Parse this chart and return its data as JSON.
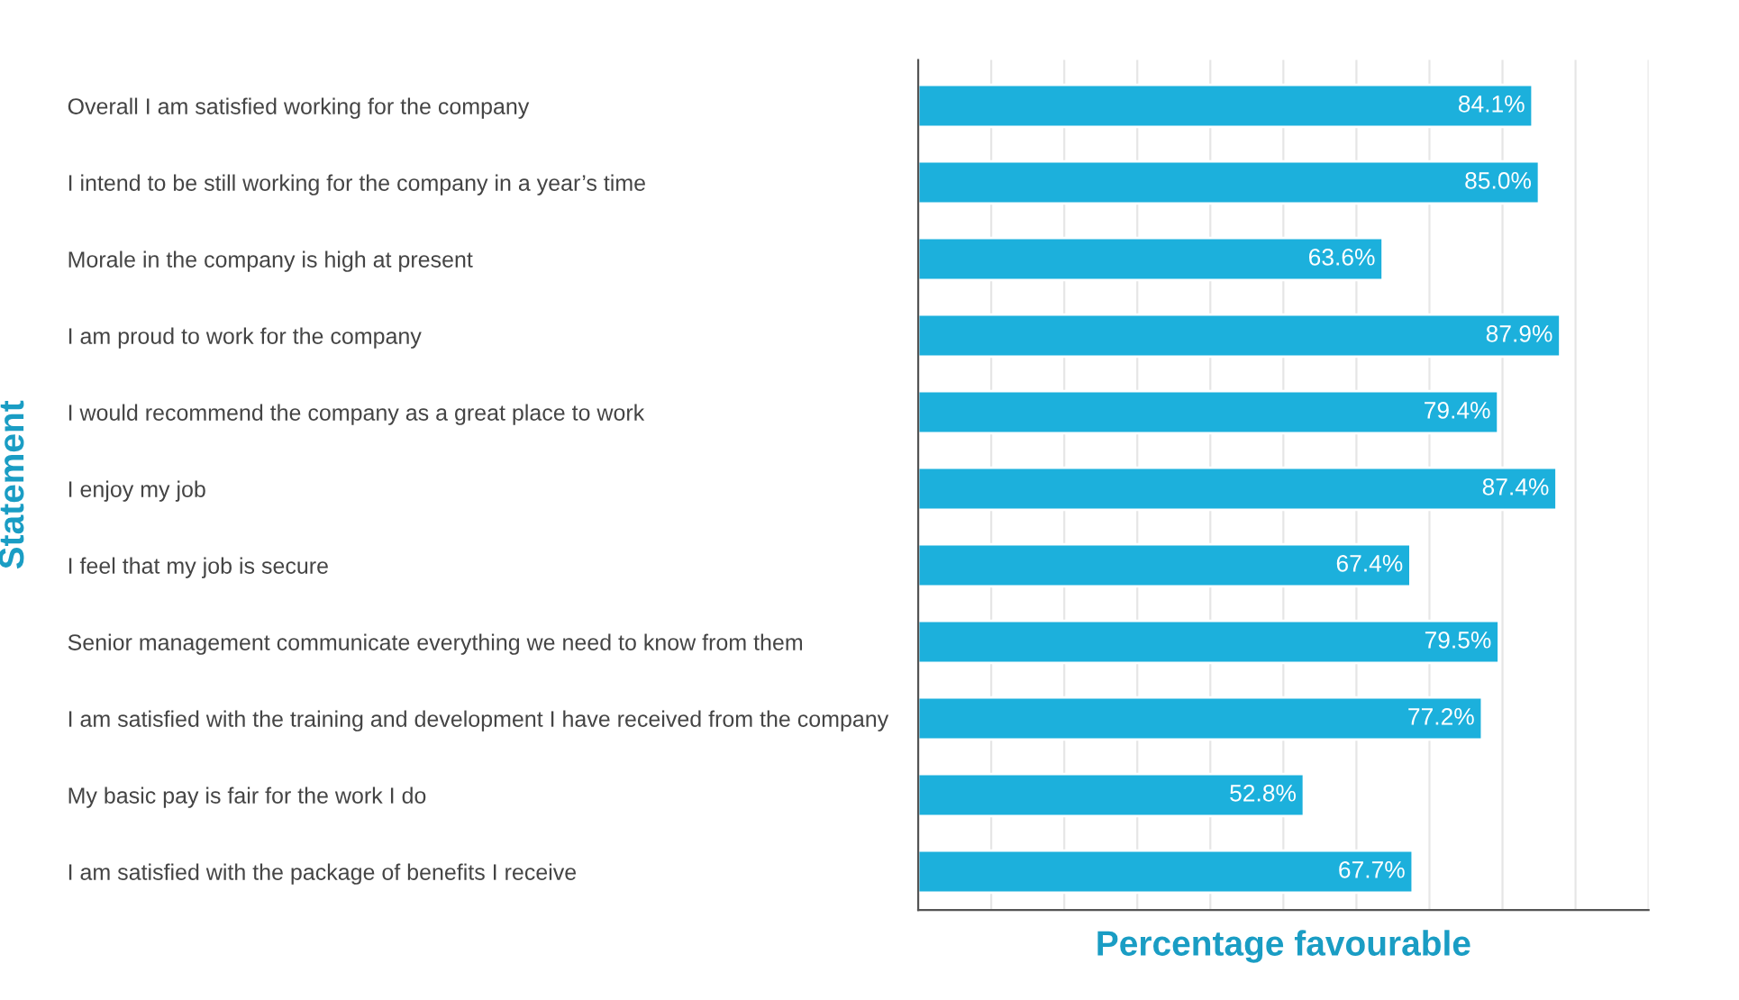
{
  "chart_data": {
    "type": "bar",
    "orientation": "horizontal",
    "xlabel": "Percentage favourable",
    "ylabel": "Statement",
    "categories": [
      "Overall I am satisfied working for the company",
      "I intend to be still working for the company in a year’s time",
      "Morale in the company is high at present",
      "I am proud to work for the company",
      "I would recommend the company as a great place to work",
      "I enjoy my job",
      "I feel that my job is secure",
      "Senior management communicate everything we need to know from them",
      "I am satisfied with the training and development I have received from the company",
      "My basic pay is fair for the work I do",
      "I am satisfied with the package of benefits I receive"
    ],
    "values": [
      84.1,
      85.0,
      63.6,
      87.9,
      79.4,
      87.4,
      67.4,
      79.5,
      77.2,
      52.8,
      67.7
    ],
    "value_labels": [
      "84.1%",
      "85.0%",
      "63.6%",
      "87.9%",
      "79.4%",
      "87.4%",
      "67.4%",
      "79.5%",
      "77.2%",
      "52.8%",
      "67.7%"
    ],
    "color": "#1cb0dc",
    "xlim": [
      0,
      100
    ],
    "xticks": [
      {
        "value": 0,
        "label": null
      },
      {
        "value": 10,
        "label": null
      },
      {
        "value": 20,
        "label": null
      },
      {
        "value": 30,
        "label": null
      },
      {
        "value": 40,
        "label": null
      },
      {
        "value": 50,
        "label": null
      },
      {
        "value": 60,
        "label": null
      },
      {
        "value": 70,
        "label": null
      },
      {
        "value": 80,
        "label": null
      },
      {
        "value": 90,
        "label": null
      },
      {
        "value": 100,
        "label": null
      }
    ],
    "grid": "x",
    "legend": false,
    "tick_labels": "y"
  }
}
